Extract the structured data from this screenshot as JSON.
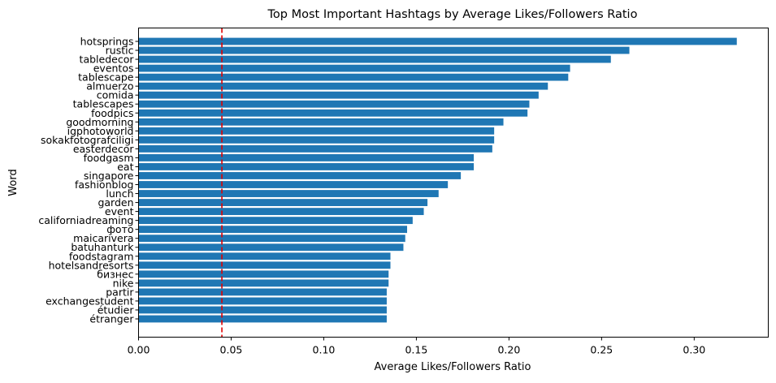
{
  "chart_data": {
    "type": "bar",
    "orientation": "horizontal",
    "title": "Top Most Important Hashtags by Average Likes/Followers Ratio",
    "xlabel": "Average Likes/Followers Ratio",
    "ylabel": "Word",
    "xlim": [
      0.0,
      0.34
    ],
    "xticks": [
      "0.00",
      "0.05",
      "0.10",
      "0.15",
      "0.20",
      "0.25",
      "0.30"
    ],
    "tick_values": [
      0.0,
      0.05,
      0.1,
      0.15,
      0.2,
      0.25,
      0.3
    ],
    "grid": false,
    "bar_color": "#1f77b4",
    "reference_line": {
      "value": 0.045,
      "color": "#e00000",
      "style": "dashed"
    },
    "categories": [
      "hotsprings",
      "rustic",
      "tabledecor",
      "eventos",
      "tablescape",
      "almuerzo",
      "comida",
      "tablescapes",
      "foodpics",
      "goodmorning",
      "igphotoworld",
      "sokakfotografciligi",
      "easterdecor",
      "foodgasm",
      "eat",
      "singapore",
      "fashionblog",
      "lunch",
      "garden",
      "event",
      "californiadreaming",
      "фото",
      "maicarivera",
      "batuhanturk",
      "foodstagram",
      "hotelsandresorts",
      "бизнес",
      "nike",
      "partir",
      "exchangestudent",
      "étudier",
      "étranger"
    ],
    "values": [
      0.323,
      0.265,
      0.255,
      0.233,
      0.232,
      0.221,
      0.216,
      0.211,
      0.21,
      0.197,
      0.192,
      0.192,
      0.191,
      0.181,
      0.181,
      0.174,
      0.167,
      0.162,
      0.156,
      0.154,
      0.148,
      0.145,
      0.144,
      0.143,
      0.136,
      0.136,
      0.135,
      0.135,
      0.134,
      0.134,
      0.134,
      0.134
    ]
  }
}
